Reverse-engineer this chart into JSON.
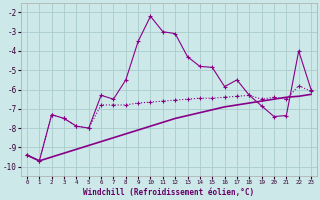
{
  "background_color": "#cce8e8",
  "grid_color": "#aacccc",
  "line_color": "#880088",
  "xlabel": "Windchill (Refroidissement éolien,°C)",
  "xlabel_color": "#660066",
  "ylim": [
    -10.5,
    -1.5
  ],
  "xlim": [
    -0.5,
    23.5
  ],
  "yticks": [
    -10,
    -9,
    -8,
    -7,
    -6,
    -5,
    -4,
    -3,
    -2
  ],
  "xticks": [
    0,
    1,
    2,
    3,
    4,
    5,
    6,
    7,
    8,
    9,
    10,
    11,
    12,
    13,
    14,
    15,
    16,
    17,
    18,
    19,
    20,
    21,
    22,
    23
  ],
  "line1_x": [
    0,
    1,
    2,
    3,
    4,
    5,
    6,
    7,
    8,
    9,
    10,
    11,
    12,
    13,
    14,
    15,
    16,
    17,
    18,
    19,
    20,
    21,
    22,
    23
  ],
  "line1_y": [
    -9.4,
    -9.7,
    -7.3,
    -7.5,
    -7.9,
    -8.0,
    -6.3,
    -6.5,
    -5.5,
    -3.5,
    -2.2,
    -3.0,
    -3.1,
    -4.3,
    -4.8,
    -4.85,
    -5.85,
    -5.5,
    -6.3,
    -6.85,
    -7.4,
    -7.35,
    -4.0,
    -6.0
  ],
  "line2_x": [
    0,
    1,
    2,
    3,
    4,
    5,
    6,
    7,
    8,
    9,
    10,
    11,
    12,
    13,
    14,
    15,
    16,
    17,
    18,
    19,
    20,
    21,
    22,
    23
  ],
  "line2_y": [
    -9.4,
    -9.7,
    -7.3,
    -7.5,
    -7.9,
    -8.0,
    -6.8,
    -6.8,
    -6.8,
    -6.7,
    -6.65,
    -6.6,
    -6.55,
    -6.5,
    -6.45,
    -6.45,
    -6.4,
    -6.35,
    -6.3,
    -6.5,
    -6.4,
    -6.5,
    -5.8,
    -6.1
  ],
  "line3_x": [
    0,
    1,
    2,
    3,
    4,
    5,
    6,
    7,
    8,
    9,
    10,
    11,
    12,
    13,
    14,
    15,
    16,
    17,
    18,
    19,
    20,
    21,
    22,
    23
  ],
  "line3_y": [
    -9.4,
    -9.7,
    -9.5,
    -9.3,
    -9.1,
    -8.9,
    -8.7,
    -8.5,
    -8.3,
    -8.1,
    -7.9,
    -7.7,
    -7.5,
    -7.35,
    -7.2,
    -7.05,
    -6.9,
    -6.8,
    -6.7,
    -6.6,
    -6.5,
    -6.4,
    -6.35,
    -6.25
  ]
}
